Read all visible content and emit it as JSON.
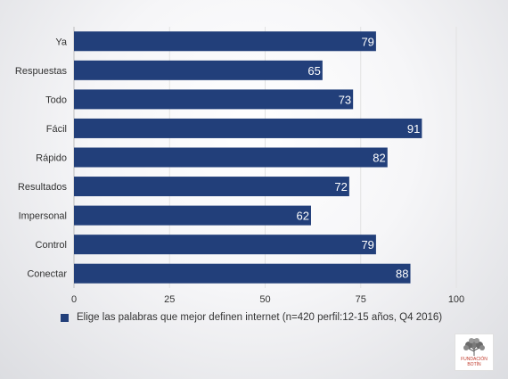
{
  "chart_data": {
    "type": "bar",
    "orientation": "horizontal",
    "categories": [
      "Ya",
      "Respuestas",
      "Todo",
      "Fácil",
      "Rápido",
      "Resultados",
      "Impersonal",
      "Control",
      "Conectar"
    ],
    "series": [
      {
        "name": "Elige las palabras que mejor definen internet  (n=420 perfil:12-15 años,  Q4 2016)",
        "values": [
          79,
          65,
          73,
          91,
          82,
          72,
          62,
          79,
          88
        ],
        "color": "#223f7a"
      }
    ],
    "xticks": [
      0,
      25,
      50,
      75,
      100
    ],
    "xlim": [
      0,
      100
    ],
    "grid": true,
    "legend_position": "bottom",
    "data_labels": true
  },
  "logo": {
    "text_line1": "FUNDACIÓN",
    "text_line2": "BOTÍN",
    "text_color": "#c0392b",
    "tree_color": "#5a5a5a"
  }
}
